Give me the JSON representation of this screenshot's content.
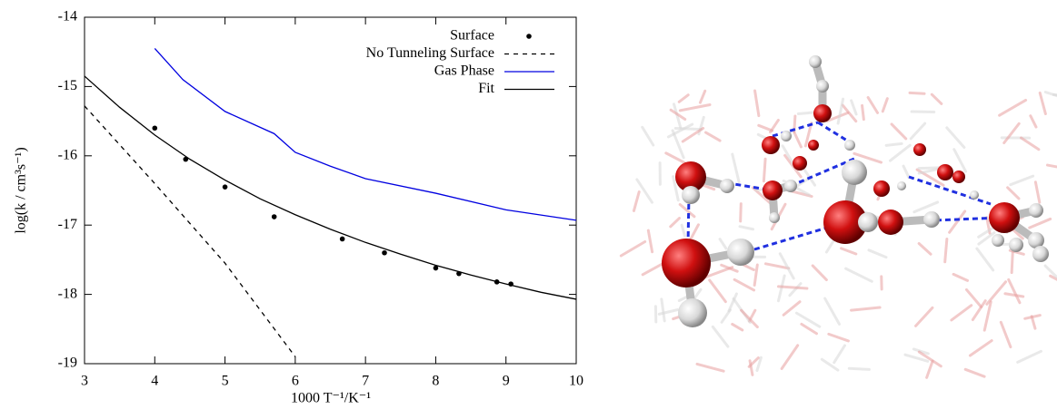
{
  "chart_data": {
    "type": "line",
    "x_label": "1000 T⁻¹/K⁻¹",
    "y_label": "log(k / cm³s⁻¹)",
    "xlim": [
      3,
      10
    ],
    "xticks": [
      3,
      4,
      5,
      6,
      7,
      8,
      9,
      10
    ],
    "ylim": [
      -19,
      -14
    ],
    "yticks": [
      -14,
      -15,
      -16,
      -17,
      -18,
      -19
    ],
    "grid": false,
    "legend": "upper right",
    "series": [
      {
        "name": "Surface",
        "color": "#000000",
        "style": "points",
        "x": [
          4,
          4.44,
          5,
          5.7,
          6.67,
          7.27,
          8,
          8.33,
          8.87,
          9.07
        ],
        "values": [
          -15.6,
          -16.05,
          -16.45,
          -16.88,
          -17.2,
          -17.4,
          -17.62,
          -17.7,
          -17.82,
          -17.85
        ]
      },
      {
        "name": "No Tunneling Surface",
        "color": "#000000",
        "style": "dashed",
        "x": [
          3,
          4,
          5,
          6
        ],
        "values": [
          -15.28,
          -16.4,
          -17.55,
          -18.9
        ]
      },
      {
        "name": "Gas Phase",
        "color": "#0000e0",
        "style": "solid",
        "x": [
          4,
          4.4,
          5,
          5.7,
          6,
          6.5,
          7,
          8,
          9,
          10
        ],
        "values": [
          -14.45,
          -14.9,
          -15.36,
          -15.68,
          -15.95,
          -16.15,
          -16.33,
          -16.54,
          -16.78,
          -16.93
        ]
      },
      {
        "name": "Fit",
        "color": "#000000",
        "style": "solid",
        "x": [
          3,
          3.5,
          4,
          4.5,
          5,
          5.5,
          6,
          6.5,
          7,
          7.5,
          8,
          8.5,
          9,
          9.5,
          10
        ],
        "values": [
          -14.85,
          -15.3,
          -15.7,
          -16.05,
          -16.35,
          -16.62,
          -16.85,
          -17.06,
          -17.25,
          -17.42,
          -17.58,
          -17.72,
          -17.85,
          -17.97,
          -18.07
        ]
      }
    ]
  }
}
